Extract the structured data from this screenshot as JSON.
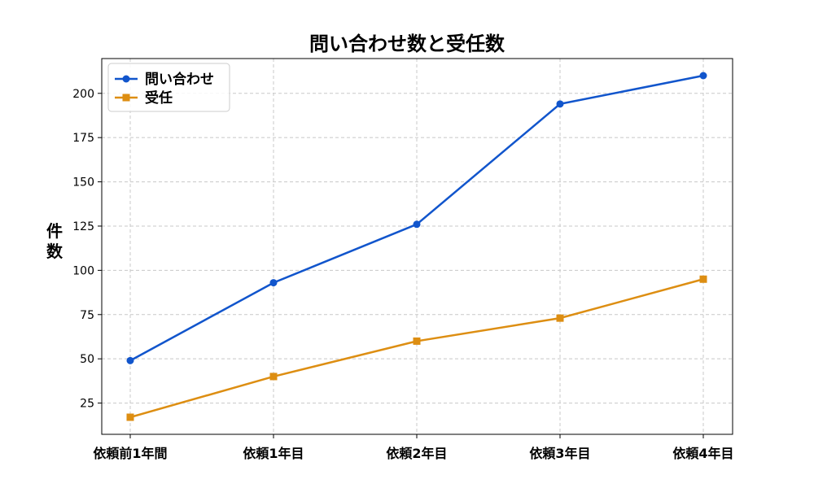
{
  "chart_data": {
    "type": "line",
    "title": "問い合わせ数と受任数",
    "xlabel": "",
    "ylabel": "件\n数",
    "categories": [
      "依頼前1年間",
      "依頼1年目",
      "依頼2年目",
      "依頼3年目",
      "依頼4年目"
    ],
    "series": [
      {
        "name": "問い合わせ",
        "values": [
          49,
          93,
          126,
          194,
          210
        ],
        "color": "#1155cc",
        "marker": "circle"
      },
      {
        "name": "受任",
        "values": [
          17,
          40,
          60,
          73,
          95
        ],
        "color": "#dd8e12",
        "marker": "square"
      }
    ],
    "yticks": [
      25,
      50,
      75,
      100,
      125,
      150,
      175,
      200
    ],
    "ylim": [
      7.35,
      219.65
    ],
    "grid": true,
    "legend_position": "top-left"
  }
}
